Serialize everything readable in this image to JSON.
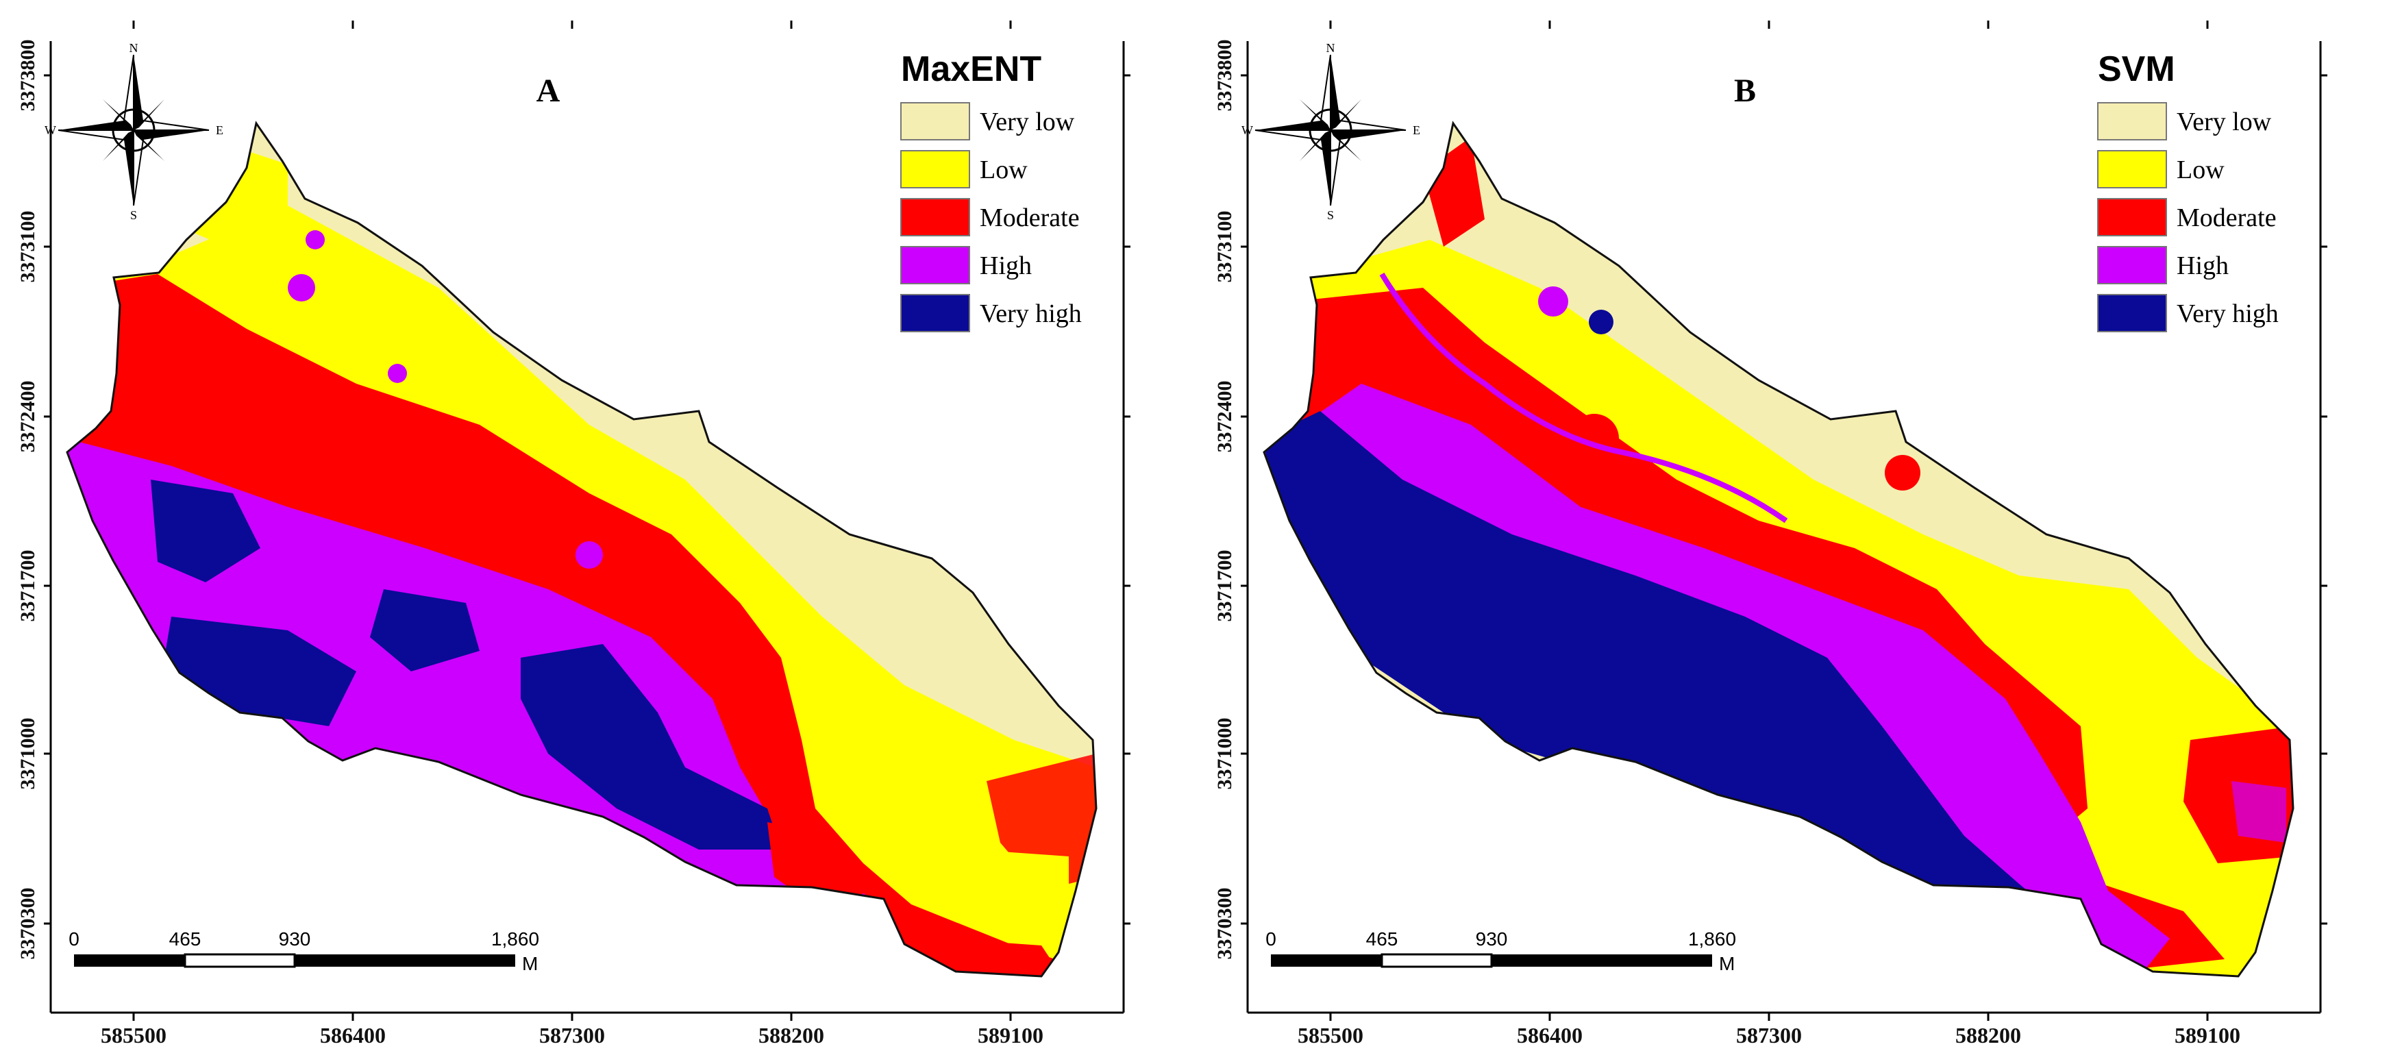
{
  "colors": {
    "very_low": "#f5eeb2",
    "low": "#ffff00",
    "moderate": "#ff0000",
    "high": "#cc00ff",
    "very_high": "#0a0a96"
  },
  "legend_labels": [
    "Very low",
    "Low",
    "Moderate",
    "High",
    "Very high"
  ],
  "x_ticks": [
    "585500",
    "586400",
    "587300",
    "588200",
    "589100"
  ],
  "y_ticks": [
    "3373800",
    "3373100",
    "3372400",
    "3371700",
    "3371000",
    "3370300"
  ],
  "scale": {
    "labels": [
      "0",
      "465",
      "930",
      "1,860"
    ],
    "unit": "M"
  },
  "compass": {
    "n": "N",
    "s": "S",
    "e": "E",
    "w": "W"
  },
  "panels": [
    {
      "letter": "A",
      "model": "MaxENT",
      "icon": "north-arrow-icon"
    },
    {
      "letter": "B",
      "model": "SVM",
      "icon": "north-arrow-icon"
    }
  ]
}
